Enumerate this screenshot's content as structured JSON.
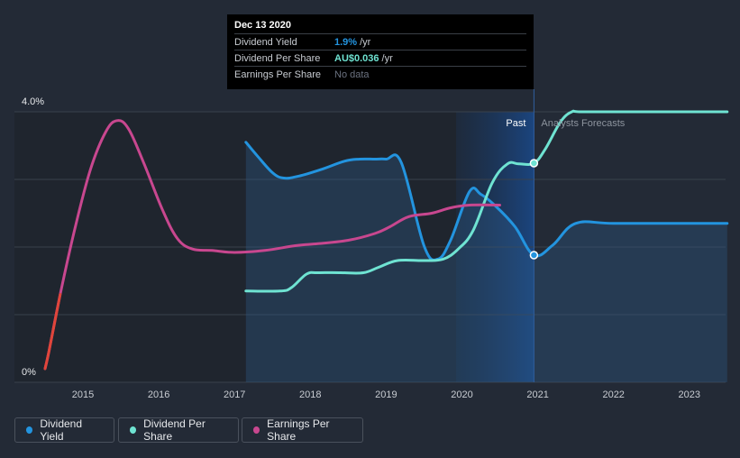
{
  "chart_data": {
    "type": "line",
    "x_ticks": [
      "2015",
      "2016",
      "2017",
      "2018",
      "2019",
      "2020",
      "2021",
      "2022",
      "2023"
    ],
    "xlim": [
      2014.4,
      2023.5
    ],
    "y_ticks": [
      "4.0%",
      "0%"
    ],
    "ylim": [
      0,
      4.0
    ],
    "regions": {
      "past": "Past",
      "forecast": "Analysts Forecasts",
      "split_x": 2020.95
    },
    "series": [
      {
        "name": "Dividend Yield",
        "color": "#2394df",
        "area": true,
        "x": [
          2017.15,
          2017.3,
          2017.5,
          2017.65,
          2017.85,
          2018.15,
          2018.45,
          2018.65,
          2018.85,
          2019.0,
          2019.2,
          2019.5,
          2019.68,
          2019.85,
          2020.1,
          2020.25,
          2020.45,
          2020.7,
          2020.95,
          2021.2,
          2021.5,
          2022.0,
          2023.0,
          2023.5
        ],
        "y": [
          3.55,
          3.35,
          3.1,
          3.02,
          3.05,
          3.15,
          3.27,
          3.3,
          3.3,
          3.3,
          3.25,
          2.02,
          1.82,
          2.1,
          2.82,
          2.78,
          2.6,
          2.3,
          1.88,
          2.03,
          2.35,
          2.35,
          2.35,
          2.35
        ]
      },
      {
        "name": "Dividend Per Share",
        "color": "#6fe3d2",
        "area": false,
        "x": [
          2017.15,
          2017.6,
          2017.75,
          2017.95,
          2018.1,
          2018.4,
          2018.7,
          2018.9,
          2019.15,
          2019.5,
          2019.75,
          2019.95,
          2020.15,
          2020.4,
          2020.6,
          2020.75,
          2020.95,
          2021.1,
          2021.3,
          2021.45,
          2021.6,
          2022.5,
          2023.5
        ],
        "y": [
          1.35,
          1.35,
          1.4,
          1.6,
          1.62,
          1.62,
          1.62,
          1.7,
          1.8,
          1.8,
          1.82,
          1.97,
          2.25,
          2.95,
          3.23,
          3.23,
          3.24,
          3.45,
          3.85,
          4.0,
          4.0,
          4.0,
          4.0
        ]
      },
      {
        "name": "Earnings Per Share",
        "color": "#c8478f",
        "area": false,
        "x": [
          2014.5,
          2014.55,
          2014.7,
          2014.9,
          2015.1,
          2015.3,
          2015.45,
          2015.6,
          2015.8,
          2016.05,
          2016.25,
          2016.45,
          2016.7,
          2017.0,
          2017.4,
          2017.8,
          2018.1,
          2018.5,
          2018.85,
          2019.05,
          2019.3,
          2019.6,
          2019.85,
          2020.1,
          2020.5
        ],
        "y": [
          0.2,
          0.45,
          1.3,
          2.3,
          3.15,
          3.7,
          3.87,
          3.75,
          3.25,
          2.55,
          2.12,
          1.97,
          1.95,
          1.92,
          1.95,
          2.02,
          2.05,
          2.1,
          2.2,
          2.3,
          2.45,
          2.5,
          2.58,
          2.62,
          2.62
        ]
      }
    ],
    "markers": [
      {
        "series": "Dividend Yield",
        "x": 2020.95,
        "y": 1.88
      },
      {
        "series": "Dividend Per Share",
        "x": 2020.95,
        "y": 3.24
      }
    ]
  },
  "tooltip": {
    "date": "Dec 13 2020",
    "rows": [
      {
        "name": "Dividend Yield",
        "value": "1.9%",
        "unit": "/yr",
        "color": "#2394df"
      },
      {
        "name": "Dividend Per Share",
        "value": "AU$0.036",
        "unit": "/yr",
        "color": "#6fe3d2"
      },
      {
        "name": "Earnings Per Share",
        "value": "No data"
      }
    ]
  },
  "legend": [
    {
      "label": "Dividend Yield",
      "color": "#2394df"
    },
    {
      "label": "Dividend Per Share",
      "color": "#6fe3d2"
    },
    {
      "label": "Earnings Per Share",
      "color": "#c8478f"
    }
  ]
}
